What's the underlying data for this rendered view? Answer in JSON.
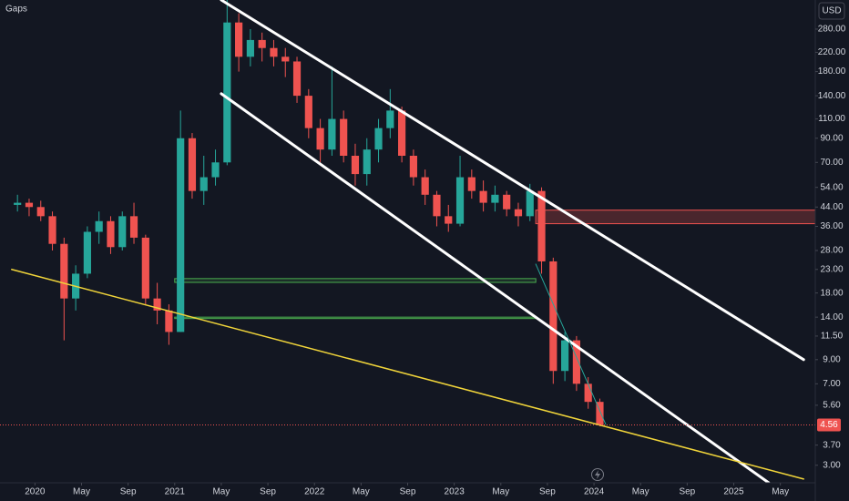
{
  "chart_data": {
    "type": "candlestick",
    "title": "Gaps",
    "currency": "USD",
    "log_scale": true,
    "grid": false,
    "up_color": "#26a69a",
    "down_color": "#ef5350",
    "x": [
      "2019-11",
      "2019-12",
      "2020-01",
      "2020-02",
      "2020-03",
      "2020-04",
      "2020-05",
      "2020-06",
      "2020-07",
      "2020-08",
      "2020-09",
      "2020-10",
      "2020-11",
      "2020-12",
      "2021-01",
      "2021-02",
      "2021-03",
      "2021-04",
      "2021-05",
      "2021-06",
      "2021-07",
      "2021-08",
      "2021-09",
      "2021-10",
      "2021-11",
      "2021-12",
      "2022-01",
      "2022-02",
      "2022-03",
      "2022-04",
      "2022-05",
      "2022-06",
      "2022-07",
      "2022-08",
      "2022-09",
      "2022-10",
      "2022-11",
      "2022-12",
      "2023-01",
      "2023-02",
      "2023-03",
      "2023-04",
      "2023-05",
      "2023-06",
      "2023-07",
      "2023-08",
      "2023-09",
      "2023-10",
      "2023-11",
      "2023-12",
      "2024-01"
    ],
    "open": [
      45,
      46,
      44,
      40,
      30,
      17,
      22,
      34,
      38,
      29,
      40,
      32,
      17,
      15,
      12,
      90,
      52,
      60,
      70,
      300,
      210,
      250,
      230,
      210,
      200,
      140,
      100,
      80,
      110,
      75,
      62,
      80,
      100,
      120,
      75,
      60,
      50,
      40,
      37,
      60,
      52,
      46,
      50,
      43,
      40,
      52,
      25,
      8,
      11,
      7,
      5.8
    ],
    "high": [
      50,
      48,
      47,
      42,
      32,
      24,
      36,
      42,
      40,
      42,
      46,
      33,
      20,
      16,
      120,
      95,
      75,
      80,
      380,
      330,
      280,
      270,
      250,
      230,
      210,
      150,
      110,
      190,
      120,
      85,
      90,
      110,
      150,
      125,
      80,
      65,
      52,
      45,
      75,
      65,
      58,
      55,
      52,
      46,
      56,
      54,
      26,
      12,
      11.5,
      7.5,
      6
    ],
    "low": [
      42,
      40,
      38,
      28,
      11,
      15,
      21,
      30,
      27,
      28,
      30,
      16,
      13,
      10.5,
      12,
      48,
      45,
      55,
      68,
      180,
      190,
      200,
      190,
      170,
      130,
      90,
      70,
      75,
      70,
      55,
      55,
      70,
      90,
      70,
      55,
      45,
      36,
      34,
      36,
      48,
      42,
      42,
      40,
      36,
      38,
      22,
      7,
      7.2,
      6.5,
      5.4,
      4.5
    ],
    "close": [
      46,
      44,
      40,
      30,
      17,
      22,
      34,
      38,
      29,
      40,
      32,
      17,
      15,
      12,
      90,
      52,
      60,
      70,
      300,
      210,
      250,
      230,
      210,
      200,
      140,
      100,
      80,
      110,
      75,
      62,
      80,
      100,
      120,
      75,
      60,
      50,
      40,
      37,
      60,
      52,
      46,
      50,
      43,
      40,
      52,
      25,
      8,
      11,
      7,
      5.8,
      4.56
    ],
    "xlim": [
      "2019-10",
      "2025-08"
    ],
    "ylim": [
      2.5,
      379
    ],
    "xticks": [
      {
        "value": "2020-01",
        "label": "2020"
      },
      {
        "value": "2020-05",
        "label": "May"
      },
      {
        "value": "2020-09",
        "label": "Sep"
      },
      {
        "value": "2021-01",
        "label": "2021"
      },
      {
        "value": "2021-05",
        "label": "May"
      },
      {
        "value": "2021-09",
        "label": "Sep"
      },
      {
        "value": "2022-01",
        "label": "2022"
      },
      {
        "value": "2022-05",
        "label": "May"
      },
      {
        "value": "2022-09",
        "label": "Sep"
      },
      {
        "value": "2023-01",
        "label": "2023"
      },
      {
        "value": "2023-05",
        "label": "May"
      },
      {
        "value": "2023-09",
        "label": "Sep"
      },
      {
        "value": "2024-01",
        "label": "2024"
      },
      {
        "value": "2024-05",
        "label": "May"
      },
      {
        "value": "2024-09",
        "label": "Sep"
      },
      {
        "value": "2025-01",
        "label": "2025"
      },
      {
        "value": "2025-05",
        "label": "May"
      }
    ],
    "yticks": [
      {
        "value": 3,
        "label": "3.00"
      },
      {
        "value": 3.7,
        "label": "3.70"
      },
      {
        "value": 5.6,
        "label": "5.60"
      },
      {
        "value": 7,
        "label": "7.00"
      },
      {
        "value": 9,
        "label": "9.00"
      },
      {
        "value": 11.5,
        "label": "11.50"
      },
      {
        "value": 14,
        "label": "14.00"
      },
      {
        "value": 18,
        "label": "18.00"
      },
      {
        "value": 23,
        "label": "23.00"
      },
      {
        "value": 28,
        "label": "28.00"
      },
      {
        "value": 36,
        "label": "36.00"
      },
      {
        "value": 44,
        "label": "44.00"
      },
      {
        "value": 54,
        "label": "54.00"
      },
      {
        "value": 70,
        "label": "70.00"
      },
      {
        "value": 90,
        "label": "90.00"
      },
      {
        "value": 110,
        "label": "110.00"
      },
      {
        "value": 140,
        "label": "140.00"
      },
      {
        "value": 180,
        "label": "180.00"
      },
      {
        "value": 220,
        "label": "220.00"
      },
      {
        "value": 280,
        "label": "280.00"
      }
    ],
    "last_price": {
      "value": 4.56,
      "label": "4.56",
      "color": "#ef5350"
    },
    "drawings": [
      {
        "kind": "line",
        "color": "#ffffff",
        "width": 3,
        "x": [
          "2021-05",
          "2025-07"
        ],
        "y": [
          379,
          9
        ]
      },
      {
        "kind": "line",
        "color": "#ffffff",
        "width": 3,
        "x": [
          "2021-05",
          "2025-04"
        ],
        "y": [
          143,
          2.5
        ]
      },
      {
        "kind": "line",
        "color": "#f0d43a",
        "width": 1.5,
        "x": [
          "2019-11",
          "2025-07"
        ],
        "y": [
          23,
          2.6
        ]
      },
      {
        "kind": "line",
        "color": "#26a69a",
        "width": 1,
        "x": [
          "2023-08",
          "2024-02"
        ],
        "y": [
          24.3,
          4.6
        ]
      },
      {
        "kind": "rect",
        "color": "#4caf50",
        "fill": "rgba(76,175,80,0.15)",
        "x": [
          "2021-01",
          "2023-08"
        ],
        "y": [
          20.9,
          20.1
        ]
      },
      {
        "kind": "rect",
        "color": "#4caf50",
        "fill": "rgba(76,175,80,0.15)",
        "x": [
          "2021-01",
          "2023-08"
        ],
        "y": [
          14,
          13.8
        ]
      },
      {
        "kind": "rect",
        "color": "#ef5350",
        "fill": "rgba(239,83,80,0.25)",
        "x": [
          "2023-08",
          "2025-08"
        ],
        "y": [
          42.6,
          37
        ]
      }
    ]
  }
}
